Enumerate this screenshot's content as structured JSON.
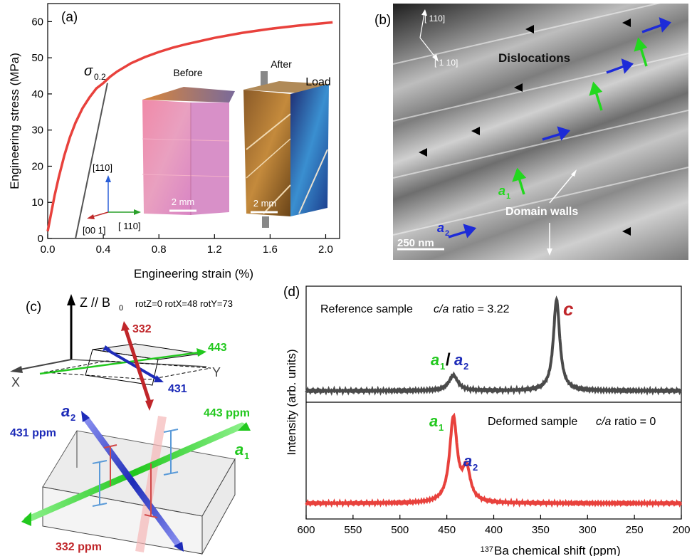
{
  "panel_a": {
    "label": "(a)",
    "chart_data": {
      "type": "line",
      "xlabel": "Engineering strain (%)",
      "ylabel": "Engineering stress (MPa)",
      "xlim": [
        0.0,
        2.1
      ],
      "ylim": [
        0,
        65
      ],
      "xticks": [
        "0.0",
        "0.4",
        "0.8",
        "1.2",
        "1.6",
        "2.0"
      ],
      "yticks": [
        "0",
        "10",
        "20",
        "30",
        "40",
        "50",
        "60"
      ],
      "series": [
        {
          "color": "#e8413c",
          "x": [
            0.0,
            0.02,
            0.05,
            0.08,
            0.12,
            0.16,
            0.2,
            0.25,
            0.3,
            0.35,
            0.4,
            0.45,
            0.5,
            0.6,
            0.7,
            0.8,
            0.9,
            1.0,
            1.2,
            1.4,
            1.6,
            1.8,
            2.05
          ],
          "y": [
            2,
            6,
            12,
            17,
            23,
            28,
            32,
            36,
            39,
            41.5,
            43,
            44.8,
            46.2,
            48.5,
            50.2,
            51.6,
            52.8,
            53.8,
            55.5,
            56.9,
            58.0,
            58.9,
            59.8
          ]
        }
      ],
      "offset_line": {
        "color": "#555555",
        "x": [
          0.2,
          0.43
        ],
        "y": [
          0,
          43
        ]
      },
      "annotation_sigma": {
        "text": "σ",
        "sub": "0.2"
      }
    },
    "inset": {
      "before_label": "Before",
      "after_label": "After",
      "load_label": "Load",
      "scale_before": "2 mm",
      "scale_after": "2 mm",
      "axis_110": "[110]",
      "axis_001": "[00 1]",
      "axis_m110": "[ 110]"
    }
  },
  "panel_b": {
    "label": "(b)",
    "dir_1": "[ 110]",
    "dir_2": "[ 1 10]",
    "dislocations_label": "Dislocations",
    "domain_walls_label": "Domain walls",
    "a1_label": "a",
    "a1_sub": "1",
    "a2_label": "a",
    "a2_sub": "2",
    "scale_bar": "250 nm"
  },
  "panel_c": {
    "label": "(c)",
    "z_label": "Z // B",
    "z_sub": "0",
    "rotation": "rotZ=0 rotX=48 rotY=73",
    "x_label": "X",
    "y_label": "Y",
    "v332": "332",
    "v443": "443",
    "v431": "431",
    "a2_label": "a",
    "a2_sub": "2",
    "a1_label": "a",
    "a1_sub": "1",
    "ppm_431": "431 ppm",
    "ppm_443": "443 ppm",
    "ppm_332": "332 ppm",
    "colors": {
      "red": "#c0262a",
      "blue": "#1d2bb8",
      "green": "#22c81e"
    }
  },
  "panel_d": {
    "label": "(d)",
    "chart_data": {
      "type": "line",
      "xlabel": "137Ba chemical shift (ppm)",
      "xlabel_sup": "137",
      "xlabel_main": "Ba chemical shift (ppm)",
      "ylabel": "Intensity (arb. units)",
      "xlim": [
        600,
        200
      ],
      "xticks": [
        "600",
        "550",
        "500",
        "450",
        "400",
        "350",
        "300",
        "250",
        "200"
      ],
      "series": [
        {
          "name": "Reference sample",
          "color": "#4a4a4a",
          "peaks": [
            {
              "x": 443,
              "height": 0.17,
              "width": 7
            },
            {
              "x": 333,
              "height": 1.0,
              "width": 5
            }
          ]
        },
        {
          "name": "Deformed sample",
          "color": "#e8413c",
          "peaks": [
            {
              "x": 443,
              "height": 1.0,
              "width": 6
            },
            {
              "x": 429,
              "height": 0.38,
              "width": 6
            }
          ]
        }
      ]
    },
    "ref_text": "Reference sample",
    "ref_ratio_prefix": "c/a",
    "ref_ratio_suffix": " ratio = 3.22",
    "def_text": "Deformed sample",
    "def_ratio_prefix": "c/a",
    "def_ratio_suffix": " ratio = 0",
    "c_label": "c",
    "a1a2_a": "a",
    "a1a2_1": "1",
    "a1a2_sep": "/",
    "a1a2_b": "a",
    "a1a2_2": "2",
    "a1_label": "a",
    "a1_sub": "1",
    "a2_label": "a",
    "a2_sub": "2",
    "colors": {
      "green": "#22c81e",
      "blue": "#1d2bb8",
      "red": "#c0262a"
    }
  }
}
